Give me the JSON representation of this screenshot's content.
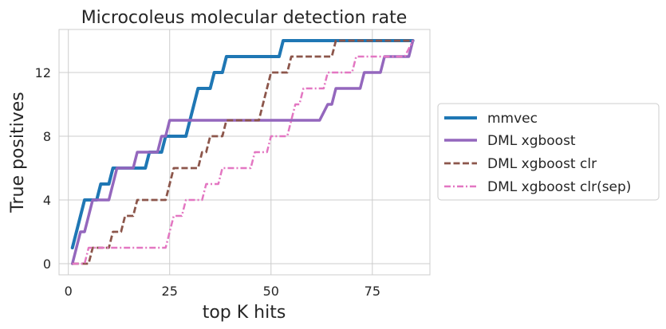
{
  "chart_data": {
    "type": "line",
    "title": "Microcoleus molecular detection rate",
    "xlabel": "top K hits",
    "ylabel": "True positives",
    "xlim": [
      -2.3,
      89.2
    ],
    "ylim": [
      -0.7,
      14.7
    ],
    "xticks": [
      0,
      25,
      50,
      75
    ],
    "yticks": [
      0,
      4,
      8,
      12
    ],
    "grid": true,
    "legend_position": "right",
    "series": [
      {
        "name": "mmvec",
        "color": "#1f77b4",
        "style": "solid",
        "width": 4,
        "points": [
          [
            1,
            1
          ],
          [
            3,
            3
          ],
          [
            4,
            4
          ],
          [
            7,
            4
          ],
          [
            8,
            5
          ],
          [
            10,
            5
          ],
          [
            11,
            6
          ],
          [
            19,
            6
          ],
          [
            20,
            7
          ],
          [
            23,
            7
          ],
          [
            24,
            8
          ],
          [
            29,
            8
          ],
          [
            30,
            9
          ],
          [
            31,
            10
          ],
          [
            32,
            11
          ],
          [
            35,
            11
          ],
          [
            36,
            12
          ],
          [
            38,
            12
          ],
          [
            39,
            13
          ],
          [
            52,
            13
          ],
          [
            53,
            14
          ],
          [
            85,
            14
          ]
        ]
      },
      {
        "name": "DML xgboost",
        "color": "#9467bd",
        "style": "solid",
        "width": 3.5,
        "points": [
          [
            1,
            0
          ],
          [
            3,
            2
          ],
          [
            4,
            2
          ],
          [
            6,
            4
          ],
          [
            10,
            4
          ],
          [
            11,
            5
          ],
          [
            12,
            6
          ],
          [
            16,
            6
          ],
          [
            17,
            7
          ],
          [
            22,
            7
          ],
          [
            23,
            8
          ],
          [
            24,
            8
          ],
          [
            25,
            9
          ],
          [
            62,
            9
          ],
          [
            64,
            10
          ],
          [
            65,
            10
          ],
          [
            66,
            11
          ],
          [
            72,
            11
          ],
          [
            73,
            12
          ],
          [
            77,
            12
          ],
          [
            78,
            13
          ],
          [
            84,
            13
          ],
          [
            85,
            14
          ]
        ]
      },
      {
        "name": "DML xgboost clr",
        "color": "#8c564b",
        "style": "dashed",
        "width": 2.8,
        "points": [
          [
            1,
            0
          ],
          [
            5,
            0
          ],
          [
            6,
            1
          ],
          [
            10,
            1
          ],
          [
            11,
            2
          ],
          [
            13,
            2
          ],
          [
            14,
            3
          ],
          [
            16,
            3
          ],
          [
            17,
            4
          ],
          [
            24,
            4
          ],
          [
            25,
            5
          ],
          [
            26,
            6
          ],
          [
            32,
            6
          ],
          [
            33,
            7
          ],
          [
            34,
            7
          ],
          [
            35,
            8
          ],
          [
            38,
            8
          ],
          [
            39,
            9
          ],
          [
            47,
            9
          ],
          [
            49,
            11
          ],
          [
            50,
            12
          ],
          [
            54,
            12
          ],
          [
            55,
            13
          ],
          [
            65,
            13
          ],
          [
            66,
            14
          ],
          [
            85,
            14
          ]
        ]
      },
      {
        "name": "DML xgboost clr(sep)",
        "color": "#e377c2",
        "style": "dashdot",
        "width": 2.5,
        "points": [
          [
            1,
            0
          ],
          [
            4,
            0
          ],
          [
            5,
            1
          ],
          [
            24,
            1
          ],
          [
            25,
            2
          ],
          [
            26,
            3
          ],
          [
            28,
            3
          ],
          [
            29,
            4
          ],
          [
            33,
            4
          ],
          [
            34,
            5
          ],
          [
            37,
            5
          ],
          [
            38,
            6
          ],
          [
            45,
            6
          ],
          [
            46,
            7
          ],
          [
            49,
            7
          ],
          [
            50,
            8
          ],
          [
            54,
            8
          ],
          [
            55,
            9
          ],
          [
            56,
            10
          ],
          [
            57,
            10
          ],
          [
            58,
            11
          ],
          [
            63,
            11
          ],
          [
            64,
            12
          ],
          [
            70,
            12
          ],
          [
            71,
            13
          ],
          [
            83,
            13
          ],
          [
            85,
            14
          ]
        ]
      }
    ]
  }
}
